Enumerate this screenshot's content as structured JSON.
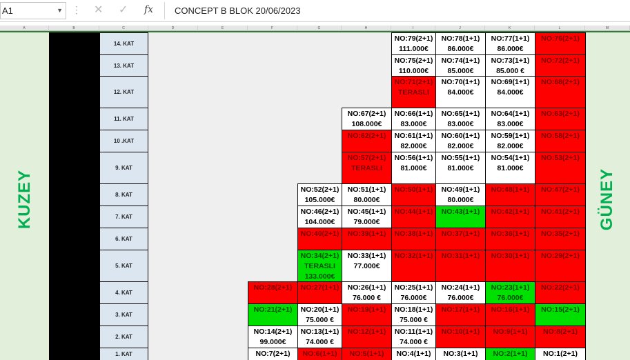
{
  "formula_bar": {
    "name_box": "A1",
    "formula": "CONCEPT B BLOK 20/06/2023"
  },
  "column_headers": [
    "A",
    "B",
    "C",
    "D",
    "E",
    "F",
    "G",
    "H",
    "I",
    "J",
    "K",
    "L",
    "M"
  ],
  "sheet": {
    "north_label": "KUZEY",
    "south_label": "GÜNEY"
  },
  "floors": [
    "14. KAT",
    "13. KAT",
    "12. KAT",
    "11. KAT",
    "10 .KAT",
    "9. KAT",
    "8. KAT",
    "7. KAT",
    "6. KAT",
    "5. KAT",
    "4. KAT",
    "3. KAT",
    "2. KAT",
    "1. KAT"
  ],
  "colors": {
    "sold": "#ff0000",
    "available": "#ffffff",
    "reserved": "#00e000"
  },
  "units": [
    {
      "row": 0,
      "col": "I",
      "status": "available",
      "lines": [
        "NO:79(2+1)",
        "111.000€"
      ]
    },
    {
      "row": 0,
      "col": "J",
      "status": "available",
      "lines": [
        "NO:78(1+1)",
        "86.000€"
      ]
    },
    {
      "row": 0,
      "col": "K",
      "status": "available",
      "lines": [
        "NO:77(1+1)",
        "86.000€"
      ]
    },
    {
      "row": 0,
      "col": "L",
      "status": "sold",
      "lines": [
        "NO:76(2+1)"
      ]
    },
    {
      "row": 1,
      "col": "I",
      "status": "available",
      "lines": [
        "NO:75(2+1)",
        "110.000€"
      ]
    },
    {
      "row": 1,
      "col": "J",
      "status": "available",
      "lines": [
        "NO:74(1+1)",
        "85.000€"
      ]
    },
    {
      "row": 1,
      "col": "K",
      "status": "available",
      "lines": [
        "NO:73(1+1)",
        "85.000 €"
      ]
    },
    {
      "row": 1,
      "col": "L",
      "status": "sold",
      "lines": [
        "NO:72(2+1)"
      ]
    },
    {
      "row": 2,
      "col": "I",
      "status": "sold",
      "lines": [
        "NO:71(2+1)",
        "TERASLI"
      ]
    },
    {
      "row": 2,
      "col": "J",
      "status": "available",
      "lines": [
        "NO:70(1+1)",
        "84.000€"
      ]
    },
    {
      "row": 2,
      "col": "K",
      "status": "available",
      "lines": [
        "NO:69(1+1)",
        "84.000€"
      ]
    },
    {
      "row": 2,
      "col": "L",
      "status": "sold",
      "lines": [
        "NO:68(2+1)"
      ]
    },
    {
      "row": 3,
      "col": "H",
      "status": "available",
      "lines": [
        "NO:67(2+1)",
        "108.000€"
      ]
    },
    {
      "row": 3,
      "col": "I",
      "status": "available",
      "lines": [
        "NO:66(1+1)",
        "83.000€"
      ]
    },
    {
      "row": 3,
      "col": "J",
      "status": "available",
      "lines": [
        "NO:65(1+1)",
        "83.000€"
      ]
    },
    {
      "row": 3,
      "col": "K",
      "status": "available",
      "lines": [
        "NO:64(1+1)",
        "83.000€"
      ]
    },
    {
      "row": 3,
      "col": "L",
      "status": "sold",
      "lines": [
        "NO:63(2+1)"
      ]
    },
    {
      "row": 4,
      "col": "H",
      "status": "sold",
      "lines": [
        "NO:62(2+1)"
      ]
    },
    {
      "row": 4,
      "col": "I",
      "status": "available",
      "lines": [
        "NO:61(1+1)",
        "82.000€"
      ]
    },
    {
      "row": 4,
      "col": "J",
      "status": "available",
      "lines": [
        "NO:60(1+1)",
        "82.000€"
      ]
    },
    {
      "row": 4,
      "col": "K",
      "status": "available",
      "lines": [
        "NO:59(1+1)",
        "82.000€"
      ]
    },
    {
      "row": 4,
      "col": "L",
      "status": "sold",
      "lines": [
        "NO:58(2+1)"
      ]
    },
    {
      "row": 5,
      "col": "H",
      "status": "sold",
      "lines": [
        "NO:57(2+1)",
        "TERASLI"
      ]
    },
    {
      "row": 5,
      "col": "I",
      "status": "available",
      "lines": [
        "NO:56(1+1)",
        "81.000€"
      ]
    },
    {
      "row": 5,
      "col": "J",
      "status": "available",
      "lines": [
        "NO:55(1+1)",
        "81.000€"
      ]
    },
    {
      "row": 5,
      "col": "K",
      "status": "available",
      "lines": [
        "NO:54(1+1)",
        "81.000€"
      ]
    },
    {
      "row": 5,
      "col": "L",
      "status": "sold",
      "lines": [
        "NO:53(2+1)"
      ]
    },
    {
      "row": 6,
      "col": "G",
      "status": "available",
      "lines": [
        "NO:52(2+1)",
        "105.000€"
      ]
    },
    {
      "row": 6,
      "col": "H",
      "status": "available",
      "lines": [
        "NO:51(1+1)",
        "80.000€"
      ]
    },
    {
      "row": 6,
      "col": "I",
      "status": "sold",
      "lines": [
        "NO:50(1+1)"
      ]
    },
    {
      "row": 6,
      "col": "J",
      "status": "available",
      "lines": [
        "NO:49(1+1)",
        "80.000€"
      ]
    },
    {
      "row": 6,
      "col": "K",
      "status": "sold",
      "lines": [
        "NO:48(1+1)"
      ]
    },
    {
      "row": 6,
      "col": "L",
      "status": "sold",
      "lines": [
        "NO:47(2+1)"
      ]
    },
    {
      "row": 7,
      "col": "G",
      "status": "available",
      "lines": [
        "NO:46(2+1)",
        "104.000€"
      ]
    },
    {
      "row": 7,
      "col": "H",
      "status": "available",
      "lines": [
        "NO:45(1+1)",
        "79.000€"
      ]
    },
    {
      "row": 7,
      "col": "I",
      "status": "sold",
      "lines": [
        "NO:44(1+1)"
      ]
    },
    {
      "row": 7,
      "col": "J",
      "status": "reserved",
      "lines": [
        "NO:43(1+1)"
      ]
    },
    {
      "row": 7,
      "col": "K",
      "status": "sold",
      "lines": [
        "NO:42(1+1)"
      ]
    },
    {
      "row": 7,
      "col": "L",
      "status": "sold",
      "lines": [
        "NO:41(2+1)"
      ]
    },
    {
      "row": 8,
      "col": "G",
      "status": "sold",
      "lines": [
        "NO:40(2+1)"
      ]
    },
    {
      "row": 8,
      "col": "H",
      "status": "sold",
      "lines": [
        "NO:39(1+1)"
      ]
    },
    {
      "row": 8,
      "col": "I",
      "status": "sold",
      "lines": [
        "NO:38(1+1)"
      ]
    },
    {
      "row": 8,
      "col": "J",
      "status": "sold",
      "lines": [
        "NO:37(1+1)"
      ]
    },
    {
      "row": 8,
      "col": "K",
      "status": "sold",
      "lines": [
        "NO:36(1+1)"
      ]
    },
    {
      "row": 8,
      "col": "L",
      "status": "sold",
      "lines": [
        "NO:35(2+1)"
      ]
    },
    {
      "row": 9,
      "col": "G",
      "status": "reserved",
      "lines": [
        "NO:34(2+1)",
        "TERASLI",
        "133.000€"
      ]
    },
    {
      "row": 9,
      "col": "H",
      "status": "available",
      "lines": [
        "NO:33(1+1)",
        "77.000€"
      ]
    },
    {
      "row": 9,
      "col": "I",
      "status": "sold",
      "lines": [
        "NO:32(1+1)"
      ]
    },
    {
      "row": 9,
      "col": "J",
      "status": "sold",
      "lines": [
        "NO:31(1+1)"
      ]
    },
    {
      "row": 9,
      "col": "K",
      "status": "sold",
      "lines": [
        "NO:30(1+1)"
      ]
    },
    {
      "row": 9,
      "col": "L",
      "status": "sold",
      "lines": [
        "NO:29(2+1)"
      ]
    },
    {
      "row": 10,
      "col": "F",
      "status": "sold",
      "lines": [
        "NO:28(2+1)"
      ]
    },
    {
      "row": 10,
      "col": "G",
      "status": "sold",
      "lines": [
        "NO:27(1+1)"
      ]
    },
    {
      "row": 10,
      "col": "H",
      "status": "available",
      "lines": [
        "NO:26(1+1)",
        "76.000 €"
      ]
    },
    {
      "row": 10,
      "col": "I",
      "status": "available",
      "lines": [
        "NO:25(1+1)",
        "76.000€"
      ]
    },
    {
      "row": 10,
      "col": "J",
      "status": "available",
      "lines": [
        "NO:24(1+1)",
        "76.000€"
      ]
    },
    {
      "row": 10,
      "col": "K",
      "status": "reserved",
      "lines": [
        "NO:23(1+1)",
        "76.000€"
      ]
    },
    {
      "row": 10,
      "col": "L",
      "status": "sold",
      "lines": [
        "NO:22(2+1)"
      ]
    },
    {
      "row": 11,
      "col": "F",
      "status": "reserved",
      "lines": [
        "NO:21(2+1)"
      ]
    },
    {
      "row": 11,
      "col": "G",
      "status": "available",
      "lines": [
        "NO:20(1+1)",
        "75.000 €"
      ]
    },
    {
      "row": 11,
      "col": "H",
      "status": "sold",
      "lines": [
        "NO:19(1+1)"
      ]
    },
    {
      "row": 11,
      "col": "I",
      "status": "available",
      "lines": [
        "NO:18(1+1)",
        "75.000 €"
      ]
    },
    {
      "row": 11,
      "col": "J",
      "status": "sold",
      "lines": [
        "NO:17(1+1)"
      ]
    },
    {
      "row": 11,
      "col": "K",
      "status": "sold",
      "lines": [
        "NO:16(1+1)"
      ]
    },
    {
      "row": 11,
      "col": "L",
      "status": "reserved",
      "lines": [
        "NO:15(2+1)"
      ]
    },
    {
      "row": 12,
      "col": "F",
      "status": "available",
      "lines": [
        "NO:14(2+1)",
        "99.000€"
      ]
    },
    {
      "row": 12,
      "col": "G",
      "status": "available",
      "lines": [
        "NO:13(1+1)",
        "74.000 €"
      ]
    },
    {
      "row": 12,
      "col": "H",
      "status": "sold",
      "lines": [
        "NO:12(1+1)"
      ]
    },
    {
      "row": 12,
      "col": "I",
      "status": "available",
      "lines": [
        "NO:11(1+1)",
        "74.000 €"
      ]
    },
    {
      "row": 12,
      "col": "J",
      "status": "sold",
      "lines": [
        "NO:10(1+1)"
      ]
    },
    {
      "row": 12,
      "col": "K",
      "status": "sold",
      "lines": [
        "NO:9(1+1)"
      ]
    },
    {
      "row": 12,
      "col": "L",
      "status": "sold",
      "lines": [
        "NO:8(2+1)"
      ]
    },
    {
      "row": 13,
      "col": "F",
      "status": "available",
      "lines": [
        "NO:7(2+1)"
      ]
    },
    {
      "row": 13,
      "col": "G",
      "status": "sold",
      "lines": [
        "NO:6(1+1)"
      ]
    },
    {
      "row": 13,
      "col": "H",
      "status": "sold",
      "lines": [
        "NO:5(1+1)"
      ]
    },
    {
      "row": 13,
      "col": "I",
      "status": "available",
      "lines": [
        "NO:4(1+1)"
      ]
    },
    {
      "row": 13,
      "col": "J",
      "status": "available",
      "lines": [
        "NO:3(1+1)"
      ]
    },
    {
      "row": 13,
      "col": "K",
      "status": "reserved",
      "lines": [
        "NO:2(1+1)"
      ]
    },
    {
      "row": 13,
      "col": "L",
      "status": "available",
      "lines": [
        "NO:1(2+1)"
      ]
    }
  ]
}
